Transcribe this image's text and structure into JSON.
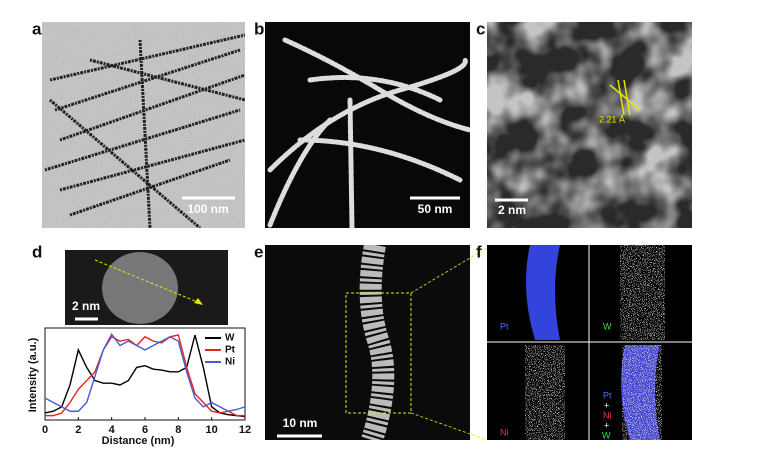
{
  "panels": [
    {
      "label": "a",
      "scale_bar": "100 nm"
    },
    {
      "label": "b",
      "scale_bar": "50 nm"
    },
    {
      "label": "c",
      "scale_bar": "2 nm",
      "annotation": "2.21 Å"
    },
    {
      "label": "d",
      "scale_bar": "2 nm"
    },
    {
      "label": "e",
      "scale_bar": "10 nm"
    },
    {
      "label": "f",
      "maps": [
        "Pt",
        "W",
        "Ni"
      ],
      "overlay": [
        "Pt",
        "+",
        "Ni",
        "+",
        "W"
      ]
    }
  ],
  "chart_data": {
    "type": "line",
    "x_label": "Distance (nm)",
    "y_label": "Intensity (a.u.)",
    "x": [
      0,
      0.5,
      1,
      1.5,
      2,
      2.5,
      3,
      3.5,
      4,
      4.5,
      5,
      5.5,
      6,
      6.5,
      7,
      7.5,
      8,
      8.5,
      9,
      9.5,
      10,
      10.5,
      11,
      11.5,
      12
    ],
    "series": [
      {
        "name": "W",
        "color": "#000000",
        "values": [
          0.08,
          0.1,
          0.15,
          0.4,
          0.8,
          0.6,
          0.45,
          0.42,
          0.42,
          0.4,
          0.45,
          0.6,
          0.62,
          0.58,
          0.57,
          0.55,
          0.55,
          0.6,
          0.97,
          0.6,
          0.15,
          0.08,
          0.06,
          0.05,
          0.04
        ]
      },
      {
        "name": "Pt",
        "color": "#e8231f",
        "values": [
          0.05,
          0.05,
          0.08,
          0.2,
          0.35,
          0.45,
          0.55,
          0.8,
          0.95,
          0.9,
          0.92,
          0.85,
          0.95,
          0.9,
          0.88,
          0.95,
          0.97,
          0.6,
          0.3,
          0.2,
          0.1,
          0.08,
          0.1,
          0.05,
          0.05
        ]
      },
      {
        "name": "Ni",
        "color": "#4a5bd6",
        "values": [
          0.25,
          0.2,
          0.15,
          0.1,
          0.1,
          0.2,
          0.5,
          0.8,
          0.98,
          0.85,
          0.9,
          0.85,
          0.8,
          0.85,
          0.9,
          0.95,
          0.9,
          0.55,
          0.25,
          0.15,
          0.2,
          0.15,
          0.1,
          0.12,
          0.15
        ]
      }
    ],
    "xlim": [
      0,
      12
    ],
    "xticks": [
      0,
      2,
      4,
      6,
      8,
      10,
      12
    ],
    "ylim": [
      0,
      1.05
    ],
    "legend": "upper right"
  }
}
